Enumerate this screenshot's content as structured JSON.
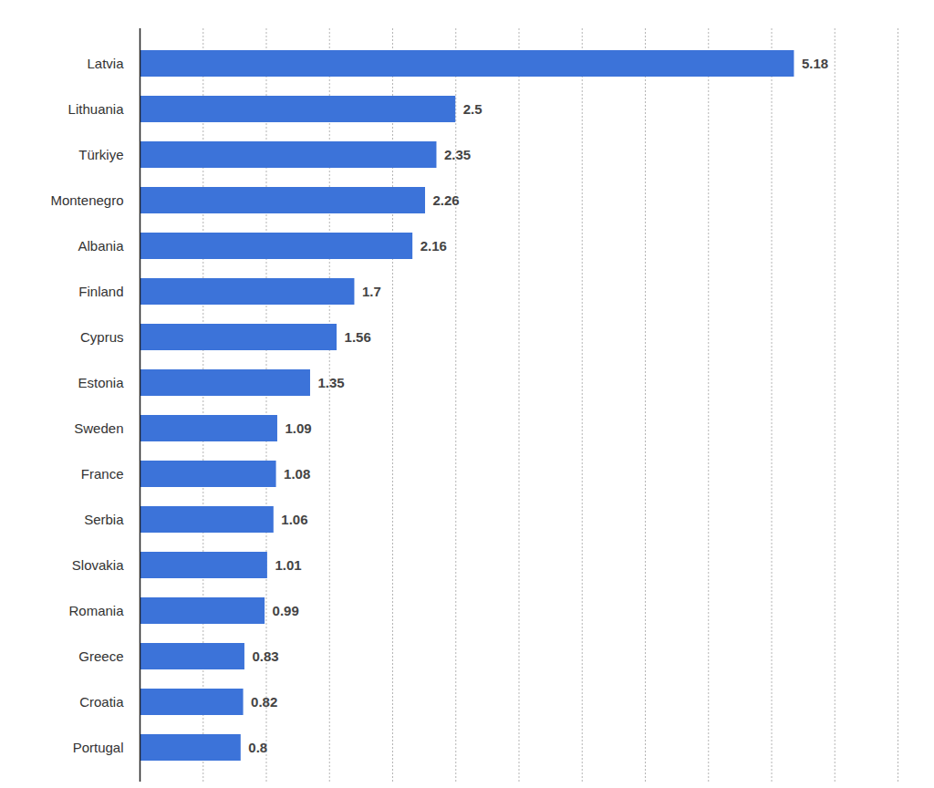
{
  "chart_data": {
    "type": "bar",
    "orientation": "horizontal",
    "categories": [
      "Latvia",
      "Lithuania",
      "Türkiye",
      "Montenegro",
      "Albania",
      "Finland",
      "Cyprus",
      "Estonia",
      "Sweden",
      "France",
      "Serbia",
      "Slovakia",
      "Romania",
      "Greece",
      "Croatia",
      "Portugal"
    ],
    "values": [
      5.18,
      2.5,
      2.35,
      2.26,
      2.16,
      1.7,
      1.56,
      1.35,
      1.09,
      1.08,
      1.06,
      1.01,
      0.99,
      0.83,
      0.82,
      0.8
    ],
    "color": "#3c73d9",
    "xlim": [
      0,
      6
    ],
    "xticks": [
      0,
      0.5,
      1,
      1.5,
      2,
      2.5,
      3,
      3.5,
      4,
      4.5,
      5,
      5.5,
      6
    ],
    "grid": true,
    "data_labels": true,
    "tick_labels": "y"
  }
}
